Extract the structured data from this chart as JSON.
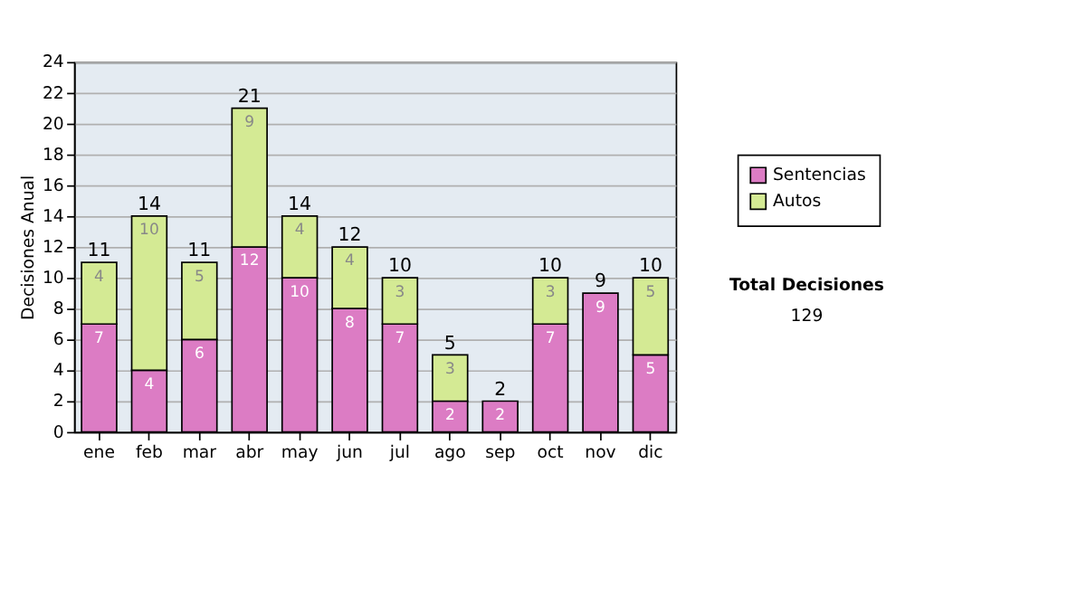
{
  "chart_data": {
    "type": "bar",
    "stacked": true,
    "ylabel": "Decisiones Anual",
    "categories": [
      "ene",
      "feb",
      "mar",
      "abr",
      "may",
      "jun",
      "jul",
      "ago",
      "sep",
      "oct",
      "nov",
      "dic"
    ],
    "series": [
      {
        "name": "Sentencias",
        "color": "#dc7cc4",
        "values": [
          7,
          4,
          6,
          12,
          10,
          8,
          7,
          2,
          2,
          7,
          9,
          5
        ]
      },
      {
        "name": "Autos",
        "color": "#d4ea94",
        "values": [
          4,
          10,
          5,
          9,
          4,
          4,
          3,
          3,
          null,
          3,
          null,
          5
        ]
      }
    ],
    "totals": [
      "11",
      "14",
      "11",
      "21",
      "14",
      "12",
      "10",
      "5",
      "2",
      "10",
      "9",
      "10"
    ],
    "data_labels": true,
    "ylim": [
      0,
      24
    ],
    "yticks": [
      0,
      2,
      4,
      6,
      8,
      10,
      12,
      14,
      16,
      18,
      20,
      22,
      24
    ],
    "grid": "y",
    "legend": "right",
    "annotations": [
      "Total Decisiones",
      "129"
    ]
  }
}
